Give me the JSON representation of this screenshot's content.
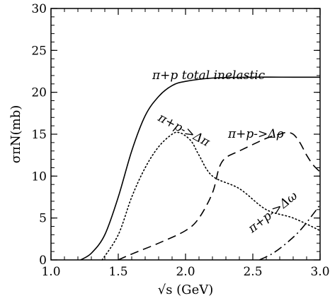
{
  "chart_data": {
    "type": "line",
    "xlabel": "√s (GeV)",
    "ylabel": "σπN(mb)",
    "xlim": [
      1.0,
      3.0
    ],
    "ylim": [
      0,
      30
    ],
    "x_ticks": [
      "1.0",
      "1.5",
      "2.0",
      "2.5",
      "3.0"
    ],
    "y_ticks": [
      "0",
      "5",
      "10",
      "15",
      "20",
      "25",
      "30"
    ],
    "grid": false,
    "series": [
      {
        "name": "π+p total inelastic",
        "style": "solid",
        "points": [
          [
            1.22,
            0
          ],
          [
            1.3,
            0.8
          ],
          [
            1.4,
            3
          ],
          [
            1.5,
            7.5
          ],
          [
            1.6,
            13
          ],
          [
            1.7,
            17.2
          ],
          [
            1.8,
            19.5
          ],
          [
            1.9,
            20.8
          ],
          [
            2.0,
            21.3
          ],
          [
            2.2,
            21.7
          ],
          [
            2.5,
            21.8
          ],
          [
            2.8,
            21.8
          ],
          [
            3.0,
            21.8
          ]
        ]
      },
      {
        "name": "π+p->Δπ",
        "style": "dotted",
        "points": [
          [
            1.38,
            0
          ],
          [
            1.5,
            3
          ],
          [
            1.6,
            7.5
          ],
          [
            1.7,
            11
          ],
          [
            1.8,
            13.5
          ],
          [
            1.9,
            15
          ],
          [
            1.95,
            15.2
          ],
          [
            2.0,
            14.8
          ],
          [
            2.05,
            14
          ],
          [
            2.1,
            12.5
          ],
          [
            2.2,
            10
          ],
          [
            2.4,
            8.5
          ],
          [
            2.6,
            6
          ],
          [
            2.8,
            5
          ],
          [
            3.0,
            3.5
          ]
        ]
      },
      {
        "name": "π+p->Δρ",
        "style": "dashed",
        "points": [
          [
            1.5,
            0
          ],
          [
            1.6,
            0.7
          ],
          [
            1.8,
            2
          ],
          [
            2.0,
            3.5
          ],
          [
            2.1,
            5
          ],
          [
            2.2,
            8
          ],
          [
            2.25,
            11
          ],
          [
            2.3,
            12.2
          ],
          [
            2.4,
            13
          ],
          [
            2.6,
            14.5
          ],
          [
            2.7,
            15
          ],
          [
            2.75,
            15.2
          ],
          [
            2.8,
            15
          ],
          [
            2.85,
            14
          ],
          [
            2.9,
            12.5
          ],
          [
            2.95,
            11.3
          ],
          [
            3.0,
            10.5
          ]
        ]
      },
      {
        "name": "π+p->Δω",
        "style": "dashdot",
        "points": [
          [
            2.55,
            0
          ],
          [
            2.65,
            0.8
          ],
          [
            2.75,
            2
          ],
          [
            2.85,
            3.5
          ],
          [
            2.95,
            5.5
          ],
          [
            3.0,
            6.6
          ]
        ]
      }
    ],
    "annotations": [
      {
        "id": "total",
        "text": "π+p total inelastic"
      },
      {
        "id": "dpi",
        "text": "π+p->Δπ"
      },
      {
        "id": "drho",
        "text": "π+p->Δρ"
      },
      {
        "id": "domega",
        "text": "π+p->Δω"
      }
    ]
  }
}
